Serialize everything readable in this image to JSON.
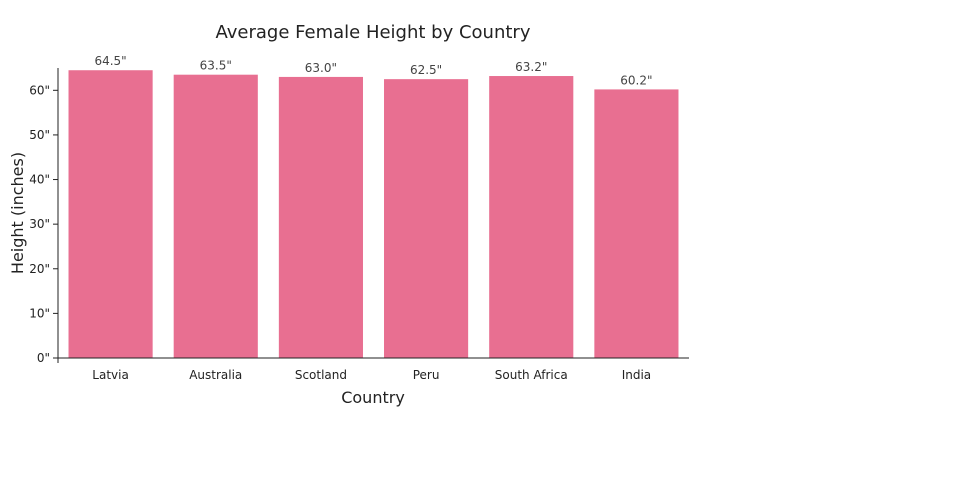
{
  "chart_data": {
    "type": "bar",
    "title": "Average Female Height by Country",
    "xlabel": "Country",
    "ylabel": "Height (inches)",
    "categories": [
      "Latvia",
      "Australia",
      "Scotland",
      "Peru",
      "South Africa",
      "India"
    ],
    "values": [
      64.5,
      63.5,
      63.0,
      62.5,
      63.2,
      60.2
    ],
    "data_labels": [
      "64.5\"",
      "63.5\"",
      "63.0\"",
      "62.5\"",
      "63.2\"",
      "60.2\""
    ],
    "ylim": [
      0,
      65
    ],
    "yticks": [
      0,
      10,
      20,
      30,
      40,
      50,
      60
    ],
    "ytick_labels": [
      "0\"",
      "10\"",
      "20\"",
      "30\"",
      "40\"",
      "50\"",
      "60\""
    ],
    "grid": false,
    "bar_color": "#e86f91"
  }
}
